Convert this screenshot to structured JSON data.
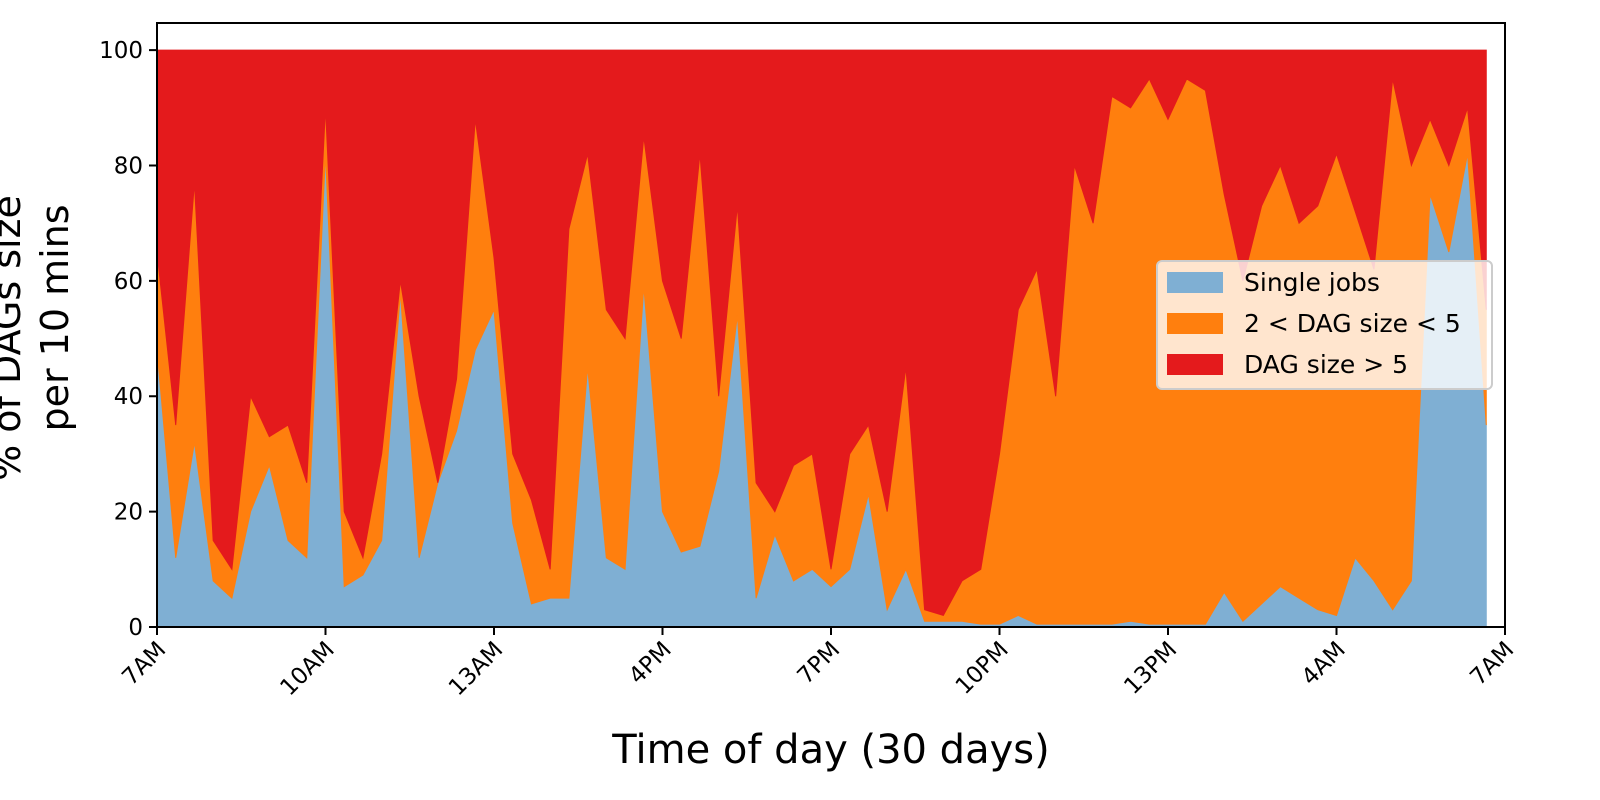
{
  "chart_data": {
    "type": "stacked_area",
    "x_label": "Time of day (30 days)",
    "y_label": [
      "% of DAGs size",
      "per 10 mins"
    ],
    "x": [
      0,
      20,
      40,
      60,
      80,
      100,
      120,
      140,
      160,
      180,
      200,
      220,
      240,
      260,
      280,
      300,
      320,
      340,
      360,
      380,
      400,
      420,
      440,
      460,
      480,
      500,
      520,
      540,
      560,
      580,
      600,
      620,
      640,
      660,
      680,
      700,
      720,
      740,
      760,
      780,
      800,
      820,
      840,
      860,
      880,
      900,
      920,
      940,
      960,
      980,
      1000,
      1020,
      1040,
      1060,
      1080,
      1100,
      1120,
      1140,
      1160,
      1180,
      1200,
      1220,
      1240,
      1260,
      1280,
      1300,
      1320,
      1340,
      1360,
      1380,
      1400,
      1420
    ],
    "xlim": [
      0,
      1440
    ],
    "xticks": [
      {
        "value": 0,
        "label": "7AM"
      },
      {
        "value": 180,
        "label": "10AM"
      },
      {
        "value": 360,
        "label": "13AM"
      },
      {
        "value": 540,
        "label": "4PM"
      },
      {
        "value": 720,
        "label": "7PM"
      },
      {
        "value": 900,
        "label": "10PM"
      },
      {
        "value": 1080,
        "label": "13PM"
      },
      {
        "value": 1260,
        "label": "4AM"
      },
      {
        "value": 1440,
        "label": "7AM"
      }
    ],
    "ylim": [
      0,
      104.7
    ],
    "yticks": [
      0,
      20,
      40,
      60,
      80,
      100
    ],
    "legend": "center right",
    "series": [
      {
        "name": "Single jobs",
        "color": "#7fafd3",
        "values": [
          48,
          12,
          32,
          8,
          5,
          20,
          28,
          15,
          12,
          82,
          7,
          9,
          15,
          58,
          12,
          25,
          34,
          48,
          55,
          18,
          4,
          5,
          5,
          45,
          12,
          10,
          59,
          20,
          13,
          14,
          27,
          54,
          5,
          16,
          8,
          10,
          7,
          10,
          23,
          3,
          10,
          1,
          1,
          1,
          0.5,
          0.5,
          2,
          0.5,
          0.5,
          0.5,
          0.5,
          0.5,
          1,
          0.5,
          0.5,
          0.5,
          0.5,
          6,
          1,
          4,
          7,
          5,
          3,
          2,
          12,
          8,
          3,
          8,
          75,
          65,
          82,
          35
        ]
      },
      {
        "name": "2 < DAG size < 5",
        "color": "#ff7f0e",
        "values": [
          17,
          23,
          45,
          7,
          5,
          20,
          5,
          20,
          13,
          8,
          13,
          3,
          15,
          2,
          28,
          0,
          9,
          40,
          9,
          12,
          18,
          5,
          64,
          37,
          43,
          40,
          26,
          40,
          37,
          68,
          13,
          19,
          20,
          4,
          20,
          20,
          3,
          20,
          12,
          17,
          35,
          2,
          1,
          7,
          9.5,
          29.5,
          53,
          61.5,
          39.5,
          79.5,
          69.5,
          91.5,
          89,
          94.5,
          87.5,
          94.5,
          92.5,
          69,
          59,
          69,
          73,
          65,
          70,
          80,
          60,
          54,
          92,
          72,
          13,
          15,
          8,
          20
        ]
      },
      {
        "name": "DAG size > 5",
        "color": "#e41a1c",
        "values": [
          35,
          65,
          23,
          85,
          90,
          60,
          67,
          65,
          75,
          10,
          80,
          88,
          70,
          40,
          60,
          75,
          57,
          12,
          36,
          70,
          78,
          90,
          31,
          18,
          45,
          50,
          15,
          40,
          50,
          18,
          60,
          27,
          75,
          80,
          72,
          70,
          90,
          70,
          65,
          80,
          55,
          97,
          98,
          92,
          90,
          70,
          45,
          38,
          60,
          20,
          30,
          8,
          10,
          5,
          12,
          5,
          7,
          25,
          40,
          27,
          20,
          30,
          27,
          18,
          28,
          38,
          5,
          20,
          12,
          20,
          10,
          45
        ]
      }
    ]
  }
}
